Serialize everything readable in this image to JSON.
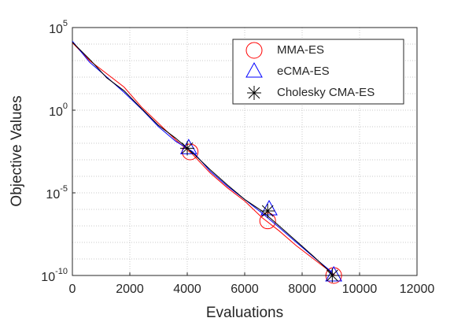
{
  "chart_data": {
    "type": "line",
    "xlabel": "Evaluations",
    "ylabel": "Objective Values",
    "xlim": [
      0,
      12000
    ],
    "xticks": [
      0,
      2000,
      4000,
      6000,
      8000,
      10000,
      12000
    ],
    "ylim": [
      1e-10,
      100000
    ],
    "log_y": true,
    "yticks": [
      {
        "value": 1e-10,
        "label": "10^-10"
      },
      {
        "value": 1e-05,
        "label": "10^-5"
      },
      {
        "value": 1,
        "label": "10^0"
      },
      {
        "value": 100000,
        "label": "10^5"
      }
    ],
    "grid": true,
    "legend": "upper right",
    "series": [
      {
        "name": "MMA-ES",
        "color": "#ff0000",
        "marker": "circle",
        "x": [
          0,
          600,
          1200,
          1800,
          2400,
          3000,
          3600,
          4200,
          4800,
          5400,
          6000,
          6600,
          7200,
          7800,
          8400,
          9000,
          9150
        ],
        "values": [
          12000,
          1000,
          160,
          25,
          1.6,
          0.16,
          0.016,
          0.002,
          0.00016,
          2e-05,
          3.2e-06,
          3.2e-07,
          5e-08,
          6.3e-09,
          1e-09,
          1.6e-10,
          1e-10
        ],
        "marker_x": [
          4100,
          6800,
          9100
        ],
        "marker_values": [
          0.003,
          2e-07,
          1e-10
        ]
      },
      {
        "name": "eCMA-ES",
        "color": "#0000ff",
        "marker": "triangle",
        "x": [
          0,
          600,
          1200,
          1800,
          2400,
          3000,
          3600,
          4200,
          4800,
          5400,
          6000,
          6600,
          7200,
          7800,
          8400,
          9000,
          9100
        ],
        "values": [
          15000,
          800,
          100,
          12,
          1.2,
          0.1,
          0.013,
          0.003,
          0.0002,
          2.5e-05,
          4e-06,
          6e-07,
          8e-08,
          1e-08,
          1.3e-09,
          1.8e-10,
          1e-10
        ],
        "marker_x": [
          4050,
          6850,
          9100
        ],
        "marker_values": [
          0.005,
          1e-06,
          1e-10
        ]
      },
      {
        "name": "Cholesky CMA-ES",
        "color": "#000000",
        "marker": "asterisk",
        "x": [
          0,
          600,
          1200,
          1800,
          2400,
          3000,
          3600,
          4200,
          4800,
          5400,
          6000,
          6600,
          7200,
          7800,
          8400,
          9000,
          9050
        ],
        "values": [
          13000,
          1200,
          90,
          15,
          1.3,
          0.12,
          0.02,
          0.0025,
          0.00025,
          3e-05,
          4e-06,
          8e-07,
          1e-07,
          1.2e-08,
          1.4e-09,
          1.5e-10,
          1e-10
        ],
        "marker_x": [
          4000,
          6800,
          9050
        ],
        "marker_values": [
          0.005,
          8e-07,
          1e-10
        ]
      }
    ]
  }
}
